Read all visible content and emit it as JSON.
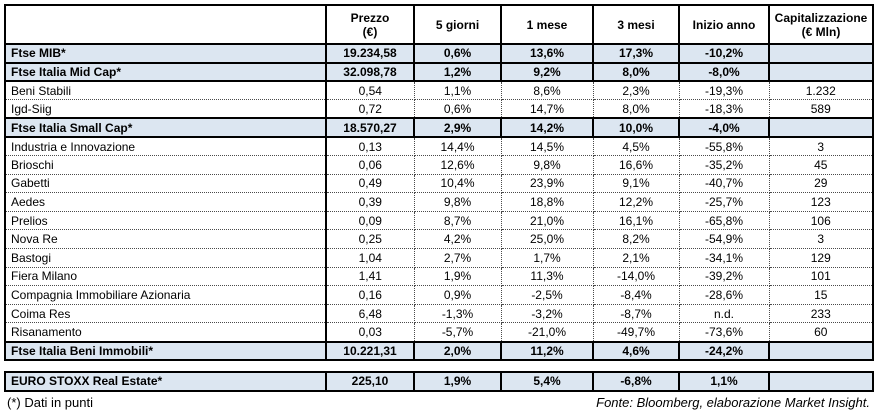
{
  "table": {
    "header": {
      "name_column": "",
      "columns": [
        {
          "label": "Prezzo",
          "sub": "(€)"
        },
        {
          "label": "5 giorni",
          "sub": ""
        },
        {
          "label": "1 mese",
          "sub": ""
        },
        {
          "label": "3 mesi",
          "sub": ""
        },
        {
          "label": "Inizio anno",
          "sub": ""
        },
        {
          "label": "Capitalizzazione",
          "sub": "(€ Mln)"
        }
      ]
    },
    "rows": [
      {
        "name": "Ftse MIB*",
        "type": "index",
        "values": [
          "19.234,58",
          "0,6%",
          "13,6%",
          "17,3%",
          "-10,2%",
          ""
        ]
      },
      {
        "name": "Ftse Italia Mid Cap*",
        "type": "index",
        "values": [
          "32.098,78",
          "1,2%",
          "9,2%",
          "8,0%",
          "-8,0%",
          ""
        ]
      },
      {
        "name": "Beni Stabili",
        "type": "stock",
        "values": [
          "0,54",
          "1,1%",
          "8,6%",
          "2,3%",
          "-19,3%",
          "1.232"
        ]
      },
      {
        "name": "Igd-Siig",
        "type": "stock",
        "values": [
          "0,72",
          "0,6%",
          "14,7%",
          "8,0%",
          "-18,3%",
          "589"
        ]
      },
      {
        "name": "Ftse Italia Small Cap*",
        "type": "index",
        "values": [
          "18.570,27",
          "2,9%",
          "14,2%",
          "10,0%",
          "-4,0%",
          ""
        ]
      },
      {
        "name": "Industria e Innovazione",
        "type": "stock",
        "values": [
          "0,13",
          "14,4%",
          "14,5%",
          "4,5%",
          "-55,8%",
          "3"
        ]
      },
      {
        "name": "Brioschi",
        "type": "stock",
        "values": [
          "0,06",
          "12,6%",
          "9,8%",
          "16,6%",
          "-35,2%",
          "45"
        ]
      },
      {
        "name": "Gabetti",
        "type": "stock",
        "values": [
          "0,49",
          "10,4%",
          "23,9%",
          "9,1%",
          "-40,7%",
          "29"
        ]
      },
      {
        "name": "Aedes",
        "type": "stock",
        "values": [
          "0,39",
          "9,8%",
          "18,8%",
          "12,2%",
          "-25,7%",
          "123"
        ]
      },
      {
        "name": "Prelios",
        "type": "stock",
        "values": [
          "0,09",
          "8,7%",
          "21,0%",
          "16,1%",
          "-65,8%",
          "106"
        ]
      },
      {
        "name": "Nova Re",
        "type": "stock",
        "values": [
          "0,25",
          "4,2%",
          "25,0%",
          "8,2%",
          "-54,9%",
          "3"
        ]
      },
      {
        "name": "Bastogi",
        "type": "stock",
        "values": [
          "1,04",
          "2,7%",
          "1,7%",
          "2,1%",
          "-34,1%",
          "129"
        ]
      },
      {
        "name": "Fiera Milano",
        "type": "stock",
        "values": [
          "1,41",
          "1,9%",
          "11,3%",
          "-14,0%",
          "-39,2%",
          "101"
        ]
      },
      {
        "name": "Compagnia Immobiliare Azionaria",
        "type": "stock",
        "values": [
          "0,16",
          "0,9%",
          "-2,5%",
          "-8,4%",
          "-28,6%",
          "15"
        ]
      },
      {
        "name": "Coima Res",
        "type": "stock",
        "values": [
          "6,48",
          "-1,3%",
          "-3,2%",
          "-8,7%",
          "n.d.",
          "233"
        ]
      },
      {
        "name": "Risanamento",
        "type": "stock",
        "values": [
          "0,03",
          "-5,7%",
          "-21,0%",
          "-49,7%",
          "-73,6%",
          "60"
        ]
      },
      {
        "name": "Ftse Italia Beni Immobili*",
        "type": "index",
        "values": [
          "10.221,31",
          "2,0%",
          "11,2%",
          "4,6%",
          "-24,2%",
          ""
        ]
      }
    ]
  },
  "euro_stoxx": {
    "name": "EURO STOXX Real Estate*",
    "values": [
      "225,10",
      "1,9%",
      "5,4%",
      "-6,8%",
      "1,1%",
      ""
    ]
  },
  "footer": {
    "note": "(*) Dati in punti",
    "source": "Fonte: Bloomberg, elaborazione Market Insight."
  },
  "colors": {
    "highlight": "#dce6f1",
    "border": "#000000"
  }
}
